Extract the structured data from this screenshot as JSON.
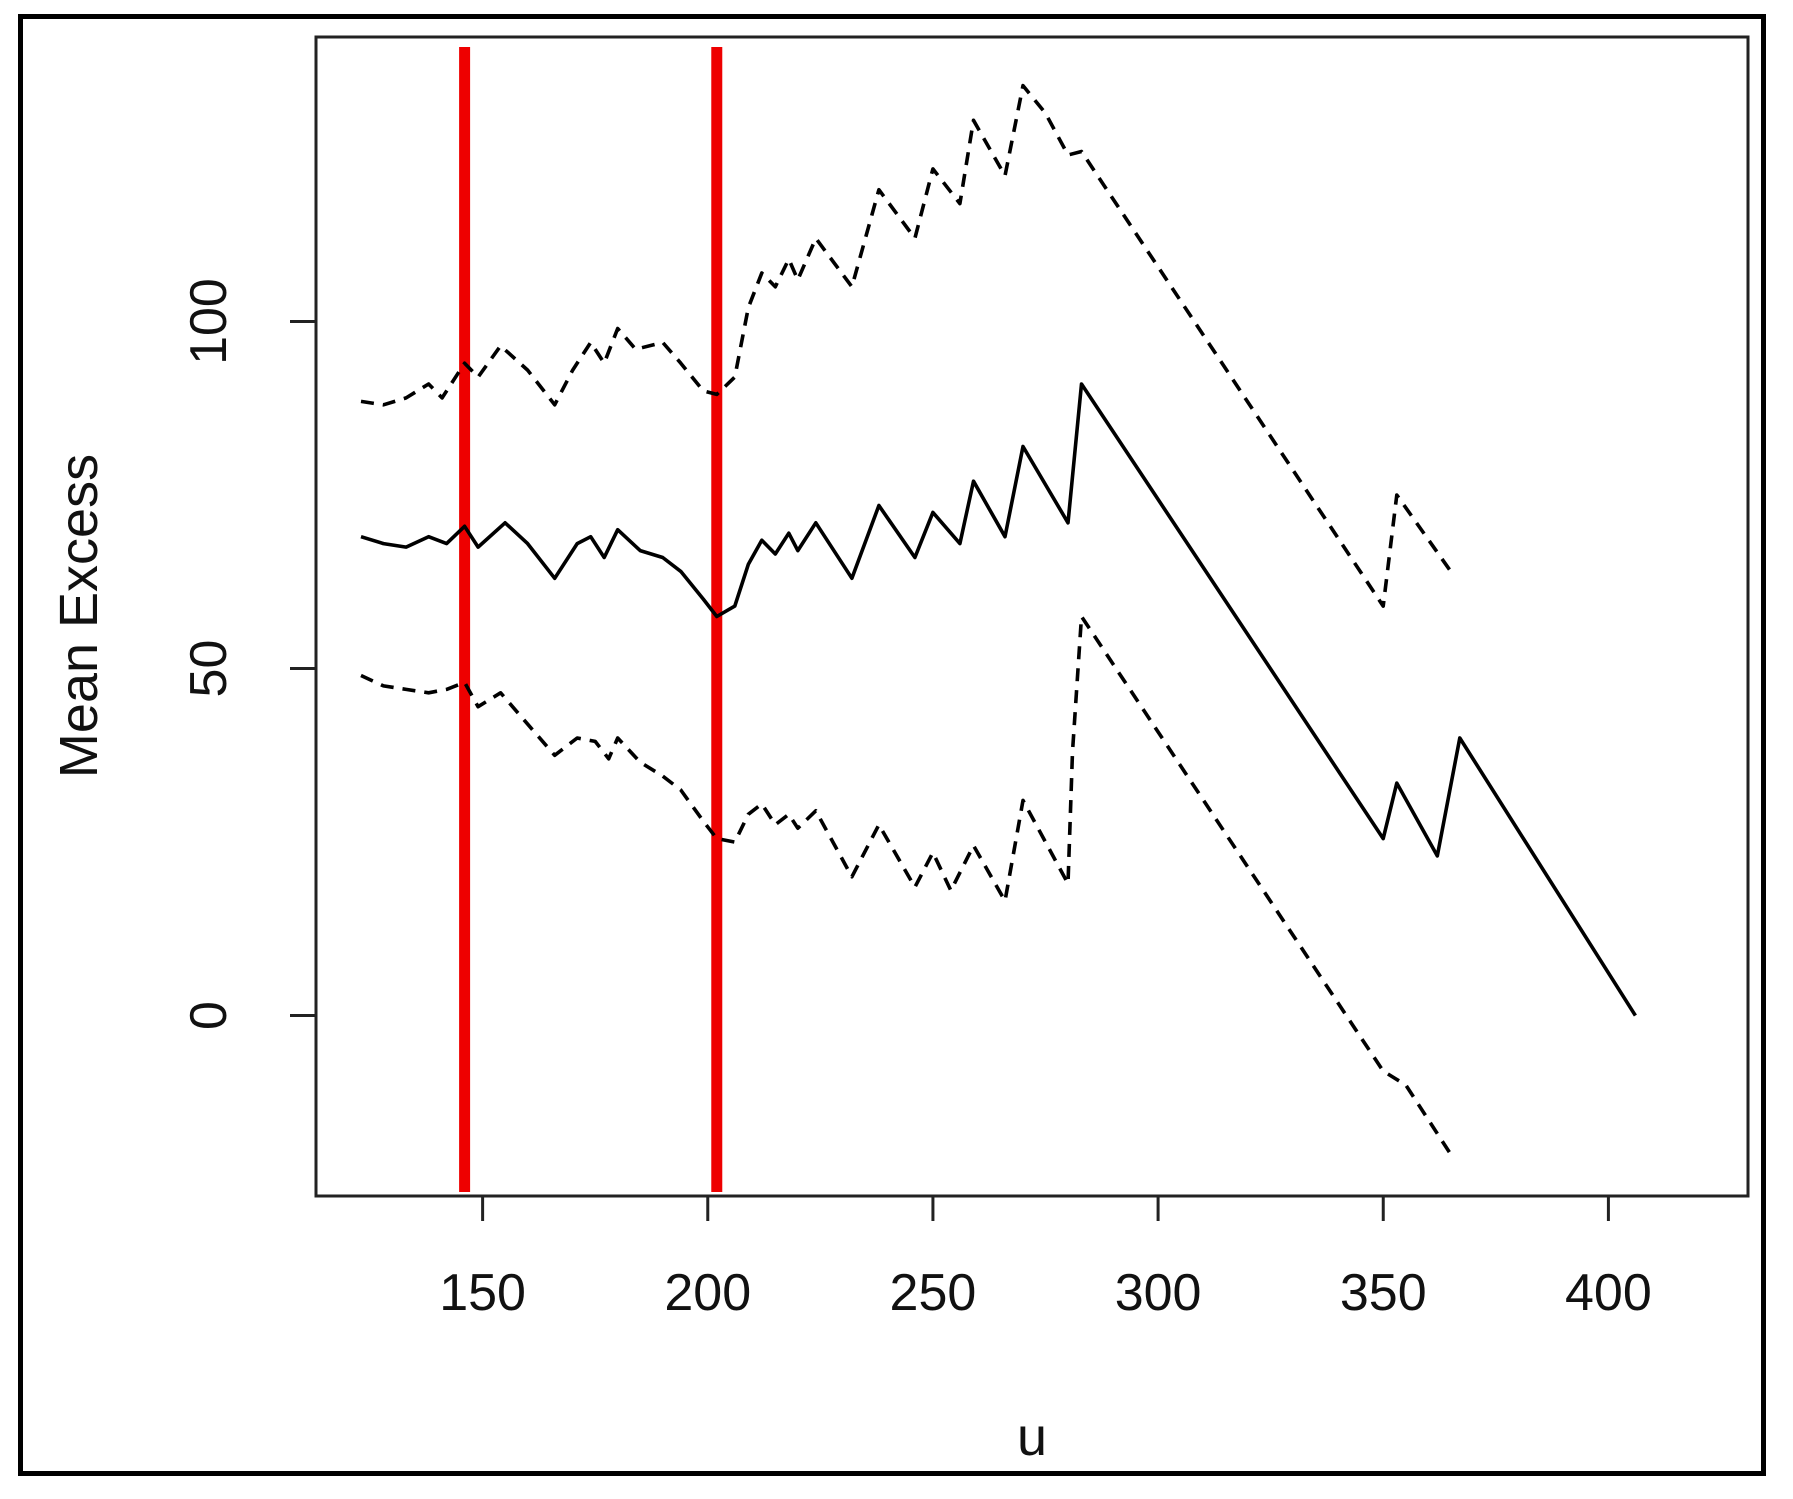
{
  "chart_data": {
    "type": "line",
    "title": "",
    "xlabel": "u",
    "ylabel": "Mean Excess",
    "xlim": [
      113,
      431
    ],
    "ylim": [
      -26,
      141
    ],
    "x_ticks": [
      150,
      200,
      250,
      300,
      350,
      400
    ],
    "y_ticks": [
      0,
      50,
      100
    ],
    "grid": false,
    "legend": "none",
    "colors": {
      "reference_lines": "#ee0000",
      "series": "#000000"
    },
    "reference_lines": [
      {
        "axis": "x",
        "value": 146
      },
      {
        "axis": "x",
        "value": 202
      }
    ],
    "series": [
      {
        "style": "solid",
        "points": [
          [
            123,
            69
          ],
          [
            128,
            68
          ],
          [
            133,
            67.5
          ],
          [
            138,
            69
          ],
          [
            142,
            68
          ],
          [
            146,
            70.5
          ],
          [
            149,
            67.5
          ],
          [
            155,
            71
          ],
          [
            160,
            68
          ],
          [
            166,
            63
          ],
          [
            171,
            68
          ],
          [
            174,
            69
          ],
          [
            177,
            66
          ],
          [
            180,
            70
          ],
          [
            185,
            67
          ],
          [
            190,
            66
          ],
          [
            194,
            64
          ],
          [
            199,
            60
          ],
          [
            202,
            57.5
          ],
          [
            206,
            59
          ],
          [
            209,
            65
          ],
          [
            212,
            68.5
          ],
          [
            215,
            66.5
          ],
          [
            218,
            69.5
          ],
          [
            220,
            67
          ],
          [
            224,
            71
          ],
          [
            232,
            63
          ],
          [
            238,
            73.5
          ],
          [
            246,
            66
          ],
          [
            250,
            72.5
          ],
          [
            256,
            68
          ],
          [
            259,
            77
          ],
          [
            266,
            69
          ],
          [
            270,
            82
          ],
          [
            280,
            71
          ],
          [
            283,
            91
          ],
          [
            350,
            25.5
          ],
          [
            353,
            33.5
          ],
          [
            362,
            23
          ],
          [
            367,
            40
          ],
          [
            406,
            0
          ]
        ]
      },
      {
        "style": "dashed",
        "points": [
          [
            123,
            88.5
          ],
          [
            128,
            88
          ],
          [
            133,
            89
          ],
          [
            138,
            91
          ],
          [
            141,
            89
          ],
          [
            146,
            94
          ],
          [
            149,
            92
          ],
          [
            154,
            96.5
          ],
          [
            160,
            93
          ],
          [
            166,
            88
          ],
          [
            170,
            93
          ],
          [
            174,
            97
          ],
          [
            177,
            94
          ],
          [
            180,
            99
          ],
          [
            184,
            96
          ],
          [
            190,
            97
          ],
          [
            194,
            94
          ],
          [
            199,
            90
          ],
          [
            202,
            89.5
          ],
          [
            206,
            92
          ],
          [
            209,
            102
          ],
          [
            212,
            107
          ],
          [
            215,
            105
          ],
          [
            218,
            109
          ],
          [
            220,
            106
          ],
          [
            224,
            112
          ],
          [
            232,
            105
          ],
          [
            238,
            119
          ],
          [
            246,
            112
          ],
          [
            250,
            122
          ],
          [
            256,
            117
          ],
          [
            259,
            129
          ],
          [
            266,
            121
          ],
          [
            270,
            134
          ],
          [
            275,
            130
          ],
          [
            280,
            124
          ],
          [
            283,
            124.5
          ],
          [
            350,
            59
          ],
          [
            353,
            75
          ],
          [
            365,
            64
          ]
        ]
      },
      {
        "style": "dashed",
        "points": [
          [
            123,
            49
          ],
          [
            128,
            47.5
          ],
          [
            133,
            47
          ],
          [
            138,
            46.5
          ],
          [
            142,
            47
          ],
          [
            146,
            48
          ],
          [
            149,
            44.5
          ],
          [
            154,
            46.5
          ],
          [
            160,
            42
          ],
          [
            166,
            37.5
          ],
          [
            171,
            40
          ],
          [
            175,
            39.5
          ],
          [
            178,
            37
          ],
          [
            180,
            40
          ],
          [
            185,
            36.5
          ],
          [
            190,
            34.5
          ],
          [
            194,
            32.5
          ],
          [
            199,
            28
          ],
          [
            202,
            25.5
          ],
          [
            206,
            25
          ],
          [
            209,
            29
          ],
          [
            212,
            30.5
          ],
          [
            215,
            27.5
          ],
          [
            218,
            29
          ],
          [
            220,
            27
          ],
          [
            224,
            29.5
          ],
          [
            232,
            20
          ],
          [
            238,
            27.5
          ],
          [
            246,
            18.5
          ],
          [
            250,
            23.5
          ],
          [
            254,
            18
          ],
          [
            259,
            24.5
          ],
          [
            266,
            16.5
          ],
          [
            270,
            31
          ],
          [
            280,
            19
          ],
          [
            281,
            38
          ],
          [
            283,
            57.5
          ],
          [
            350,
            -8
          ],
          [
            355,
            -10
          ],
          [
            365,
            -20
          ]
        ]
      }
    ]
  }
}
